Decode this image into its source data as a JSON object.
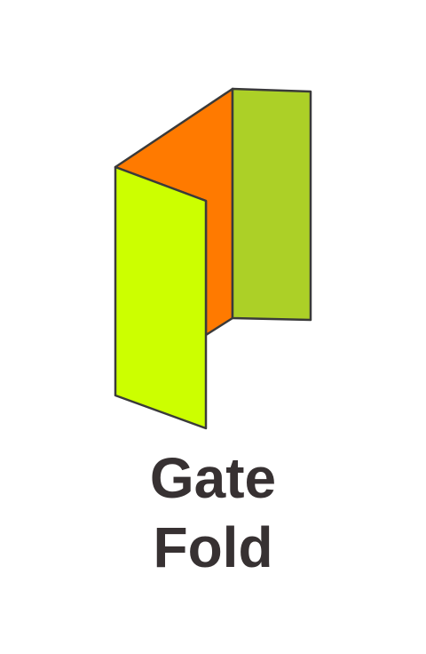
{
  "caption": {
    "line1": "Gate",
    "line2": "Fold"
  },
  "colors": {
    "left_panel": "#ccff00",
    "center_panel": "#ff7a00",
    "right_panel": "#acd027",
    "outline": "#3a3a3a",
    "text": "#373132"
  }
}
